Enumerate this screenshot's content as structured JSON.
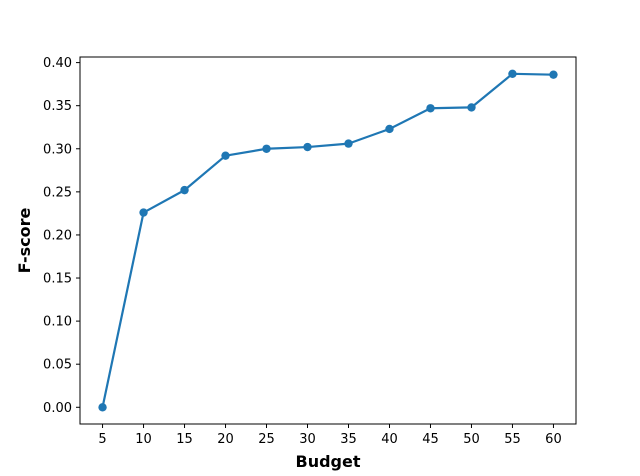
{
  "chart_data": {
    "type": "line",
    "title": "",
    "xlabel": "Budget",
    "ylabel": "F-score",
    "x": [
      5,
      10,
      15,
      20,
      25,
      30,
      35,
      40,
      45,
      50,
      55,
      60
    ],
    "series": [
      {
        "values": [
          0.0,
          0.226,
          0.252,
          0.292,
          0.3,
          0.302,
          0.306,
          0.323,
          0.347,
          0.348,
          0.387,
          0.386
        ]
      }
    ],
    "xticks": [
      "5",
      "10",
      "15",
      "20",
      "25",
      "30",
      "35",
      "40",
      "45",
      "50",
      "55",
      "60"
    ],
    "yticks": [
      "0.00",
      "0.05",
      "0.10",
      "0.15",
      "0.20",
      "0.25",
      "0.30",
      "0.35",
      "0.40"
    ],
    "xlim": [
      2.25,
      62.75
    ],
    "ylim": [
      -0.0194,
      0.4065
    ],
    "grid": false,
    "legend": "none",
    "line_color": "#1f77b4"
  }
}
